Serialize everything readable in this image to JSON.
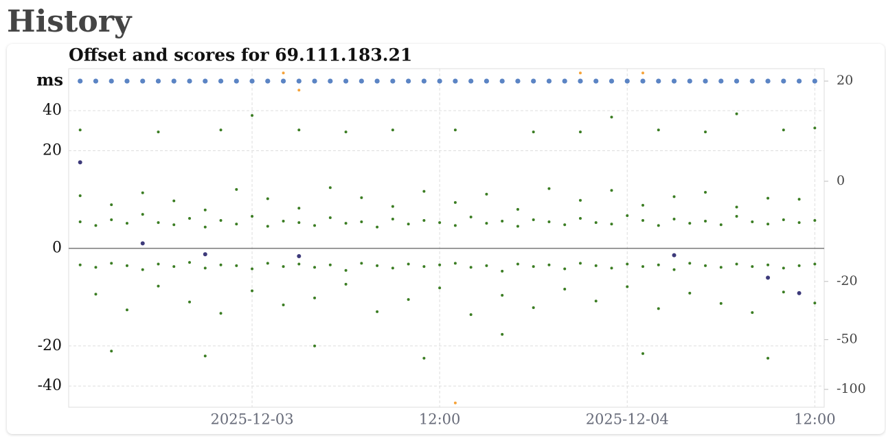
{
  "header": {
    "title": "History"
  },
  "chart_data": {
    "type": "scatter",
    "title": "Offset and scores for 69.111.183.21",
    "y_label": "ms",
    "x": [
      "2025-12-02 13:00",
      "2025-12-02 14:00",
      "2025-12-02 15:00",
      "2025-12-02 16:00",
      "2025-12-02 17:00",
      "2025-12-02 18:00",
      "2025-12-02 19:00",
      "2025-12-02 20:00",
      "2025-12-02 21:00",
      "2025-12-02 22:00",
      "2025-12-02 23:00",
      "2025-12-03 00:00",
      "2025-12-03 01:00",
      "2025-12-03 02:00",
      "2025-12-03 03:00",
      "2025-12-03 04:00",
      "2025-12-03 05:00",
      "2025-12-03 06:00",
      "2025-12-03 07:00",
      "2025-12-03 08:00",
      "2025-12-03 09:00",
      "2025-12-03 10:00",
      "2025-12-03 11:00",
      "2025-12-03 12:00",
      "2025-12-03 13:00",
      "2025-12-03 14:00",
      "2025-12-03 15:00",
      "2025-12-03 16:00",
      "2025-12-03 17:00",
      "2025-12-03 18:00",
      "2025-12-03 19:00",
      "2025-12-03 20:00",
      "2025-12-03 21:00",
      "2025-12-03 22:00",
      "2025-12-03 23:00",
      "2025-12-04 00:00",
      "2025-12-04 01:00",
      "2025-12-04 02:00",
      "2025-12-04 03:00",
      "2025-12-04 04:00",
      "2025-12-04 05:00",
      "2025-12-04 06:00",
      "2025-12-04 07:00",
      "2025-12-04 08:00",
      "2025-12-04 09:00",
      "2025-12-04 10:00",
      "2025-12-04 11:00",
      "2025-12-04 12:00"
    ],
    "xlim": [
      "2025-12-02 12:16",
      "2025-12-04 12:36"
    ],
    "xticks": [
      {
        "value": "2025-12-03 00:00",
        "label": "2025-12-03"
      },
      {
        "value": "2025-12-03 12:00",
        "label": "12:00"
      },
      {
        "value": "2025-12-04 00:00",
        "label": "2025-12-04"
      },
      {
        "value": "2025-12-04 12:00",
        "label": "12:00"
      }
    ],
    "ylim": [
      -56,
      77
    ],
    "yticks": [
      -40,
      -20,
      0,
      20,
      40
    ],
    "yscale": "symlog",
    "y2lim": [
      -127,
      24.7
    ],
    "y2ticks": [
      -100,
      -50,
      -20,
      0,
      20
    ],
    "y2scale": "symlog",
    "grid": true,
    "series": [
      {
        "color": "#3b7d23",
        "values": [
          3.1,
          2.6,
          3.4,
          2.9,
          4.2,
          3.0,
          2.7,
          3.6,
          2.4,
          3.3,
          2.8,
          3.9,
          2.5,
          3.2,
          3.0,
          2.6,
          3.7,
          2.9,
          3.1,
          2.4,
          3.5,
          2.8,
          3.3,
          3.0,
          2.6,
          3.8,
          2.9,
          3.2,
          2.5,
          3.4,
          3.1,
          2.7,
          3.6,
          3.0,
          2.8,
          4.0,
          3.3,
          2.6,
          3.5,
          2.9,
          3.2,
          2.7,
          3.9,
          3.1,
          2.8,
          3.4,
          3.0,
          3.3
        ]
      },
      {
        "color": "#3b7d23",
        "values": [
          -1.8,
          -2.1,
          -1.6,
          -1.9,
          -2.4,
          -1.7,
          -2.0,
          -1.5,
          -2.2,
          -1.8,
          -1.9,
          -2.3,
          -1.6,
          -2.0,
          -1.7,
          -2.1,
          -1.8,
          -2.5,
          -1.6,
          -1.9,
          -2.2,
          -1.7,
          -2.0,
          -1.8,
          -1.6,
          -2.1,
          -1.9,
          -2.6,
          -1.7,
          -2.0,
          -1.8,
          -2.3,
          -1.6,
          -1.9,
          -2.2,
          -1.7,
          -2.0,
          -1.8,
          -2.4,
          -1.6,
          -1.9,
          -2.1,
          -1.7,
          -2.0,
          -1.8,
          -2.2,
          -1.9,
          -1.7
        ]
      },
      {
        "color": "#3b7d23",
        "values": [
          7.5,
          -6.2,
          5.8,
          -9.4,
          8.1,
          -4.8,
          6.5,
          -7.7,
          4.9,
          -10.2,
          8.8,
          -5.6,
          6.9,
          -8.3,
          5.2,
          -6.9,
          9.2,
          -4.5,
          7.1,
          -9.8,
          5.5,
          -7.2,
          8.4,
          -5.1,
          6.2,
          -10.5,
          7.8,
          -6.4,
          5.0,
          -8.9,
          9.0,
          -5.3,
          6.6,
          -7.5,
          8.6,
          -4.9,
          5.7,
          -9.1,
          7.3,
          -6.0,
          8.2,
          -8.0,
          5.4,
          -10.0,
          7.0,
          -5.8,
          6.8,
          -7.9
        ]
      },
      {
        "color": "#3b7d23",
        "values": [
          29,
          null,
          -22,
          null,
          null,
          28,
          null,
          null,
          -24,
          29,
          null,
          37,
          null,
          null,
          29,
          -20,
          null,
          28,
          null,
          null,
          29,
          null,
          -25,
          null,
          29,
          null,
          null,
          -16,
          null,
          28,
          null,
          null,
          28,
          null,
          36,
          null,
          -23,
          29,
          null,
          null,
          28,
          null,
          38,
          null,
          -25,
          29,
          null,
          30
        ]
      },
      {
        "color": "#3d3a7a",
        "values": [
          16,
          null,
          null,
          null,
          0.5,
          null,
          null,
          null,
          -0.6,
          null,
          null,
          null,
          null,
          null,
          -0.8,
          null,
          null,
          null,
          null,
          null,
          null,
          null,
          null,
          null,
          null,
          null,
          null,
          null,
          null,
          null,
          null,
          null,
          null,
          null,
          null,
          null,
          null,
          null,
          -0.7,
          null,
          null,
          null,
          null,
          null,
          -3.5,
          null,
          -6,
          null
        ]
      },
      {
        "color": "#5b84c4",
        "axis": "y2",
        "values": [
          20,
          20,
          20,
          20,
          20,
          20,
          20,
          20,
          20,
          20,
          20,
          20,
          20,
          20,
          20,
          20,
          20,
          20,
          20,
          20,
          20,
          20,
          20,
          20,
          20,
          20,
          20,
          20,
          20,
          20,
          20,
          20,
          20,
          20,
          20,
          20,
          20,
          20,
          20,
          20,
          20,
          20,
          20,
          20,
          20,
          20,
          20,
          20
        ]
      },
      {
        "color": "#f5a33a",
        "axis": "y2",
        "values": [
          null,
          null,
          null,
          null,
          null,
          null,
          null,
          null,
          null,
          null,
          null,
          null,
          null,
          23,
          17,
          null,
          null,
          null,
          null,
          null,
          null,
          null,
          null,
          null,
          -120,
          null,
          null,
          null,
          null,
          null,
          null,
          null,
          23,
          null,
          null,
          null,
          23,
          null,
          null,
          null,
          null,
          null,
          null,
          null,
          null,
          null,
          null,
          null
        ]
      }
    ]
  }
}
